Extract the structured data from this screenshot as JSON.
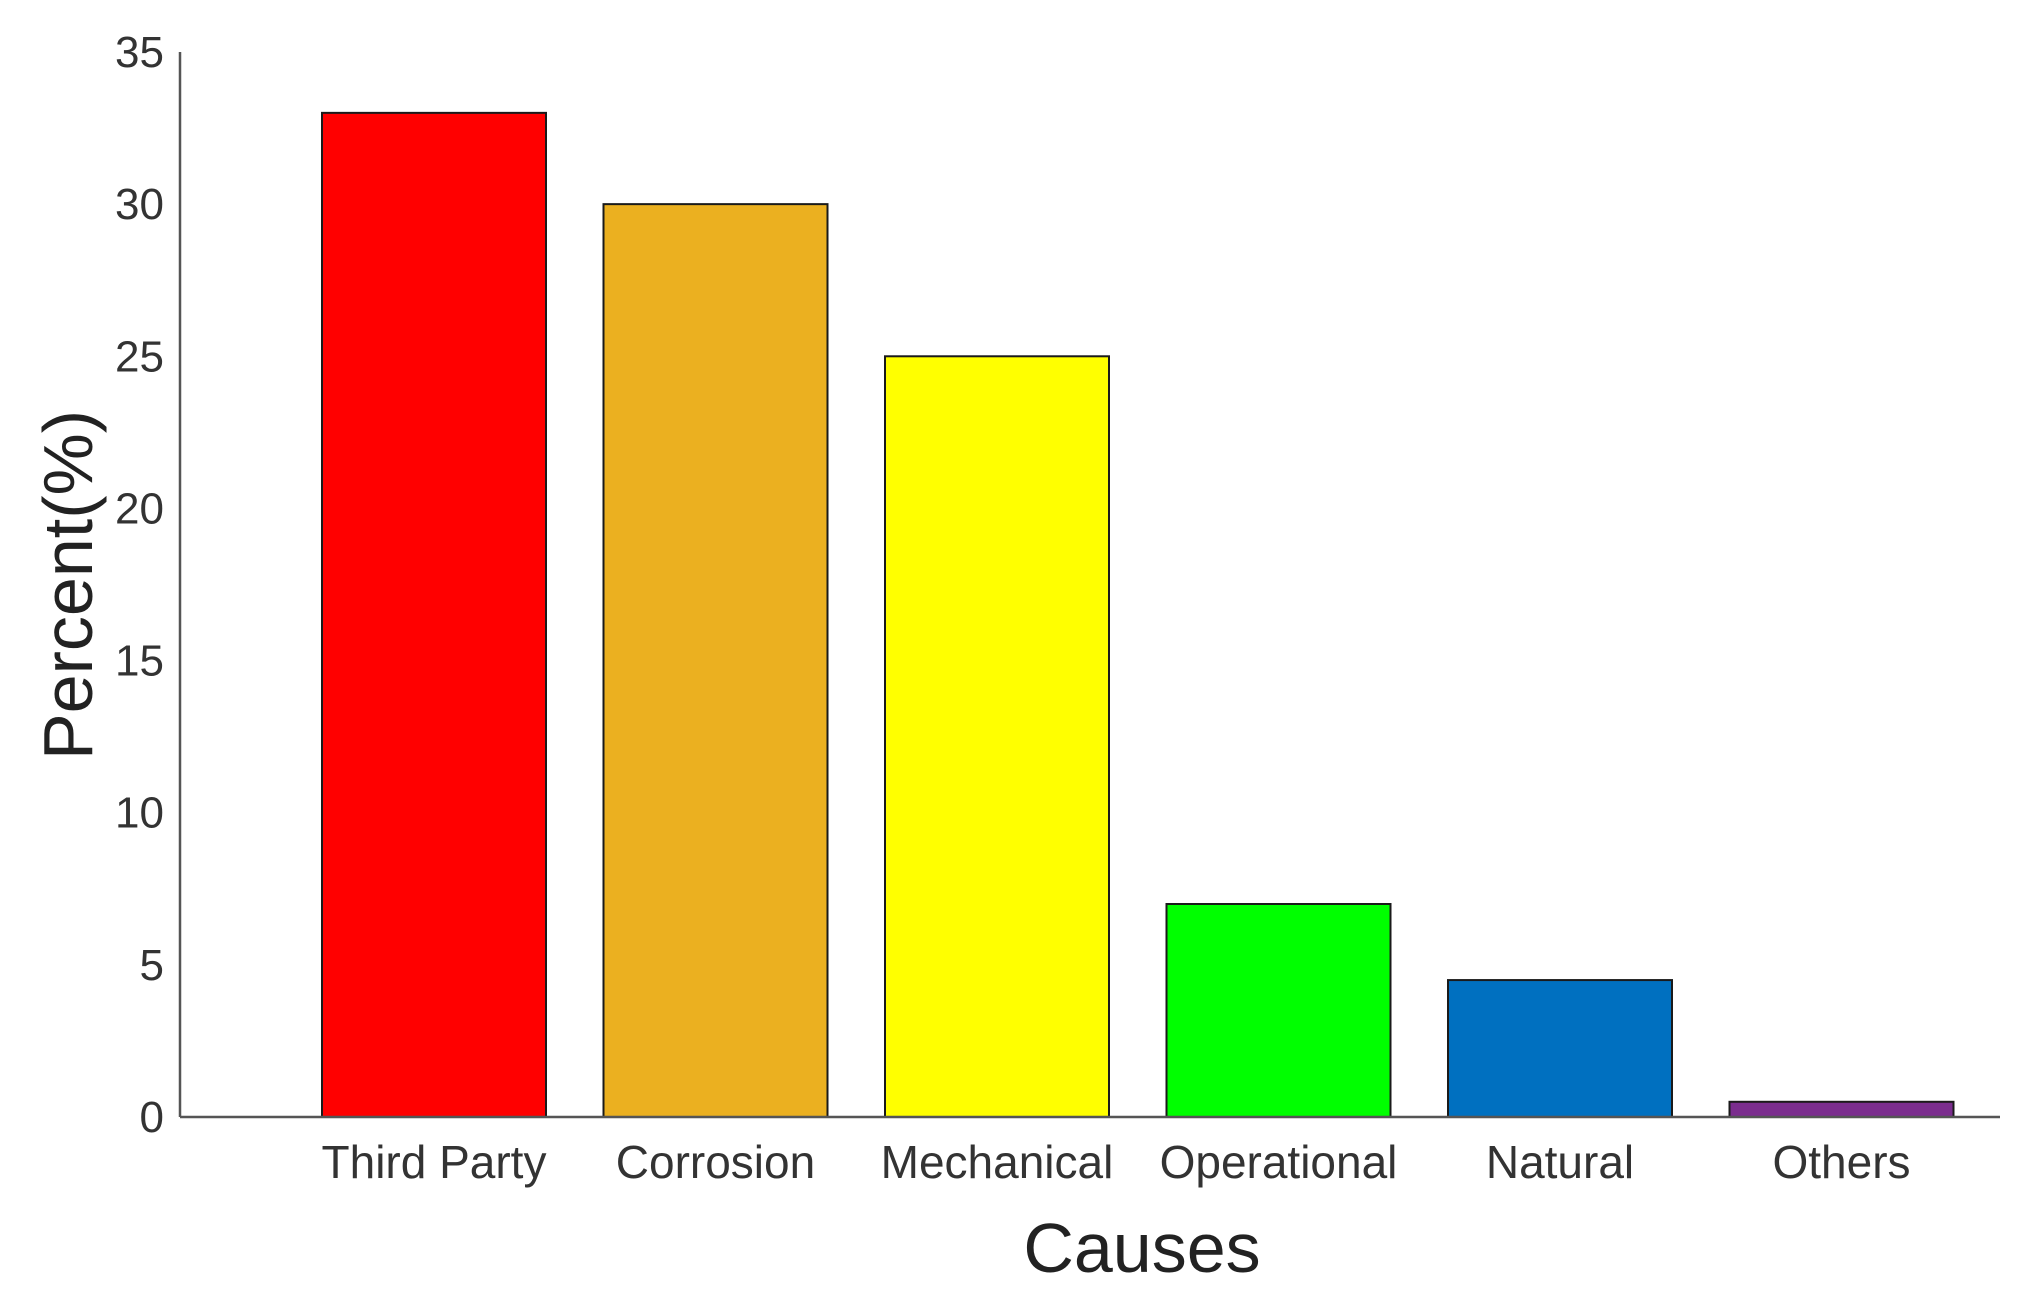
{
  "chart_data": {
    "type": "bar",
    "categories": [
      "Third Party",
      "Corrosion",
      "Mechanical",
      "Operational",
      "Natural",
      "Others"
    ],
    "values": [
      33,
      30,
      25,
      7,
      4.5,
      0.5
    ],
    "colors": [
      "#ff0000",
      "#ebb020",
      "#ffff00",
      "#00ff00",
      "#0070c0",
      "#7b2d8e"
    ],
    "xlabel": "Causes",
    "ylabel": "Percent(%)",
    "ylim": [
      0,
      35
    ],
    "yticks": [
      0,
      5,
      10,
      15,
      20,
      25,
      30,
      35
    ],
    "grid": false,
    "legend": "none"
  }
}
